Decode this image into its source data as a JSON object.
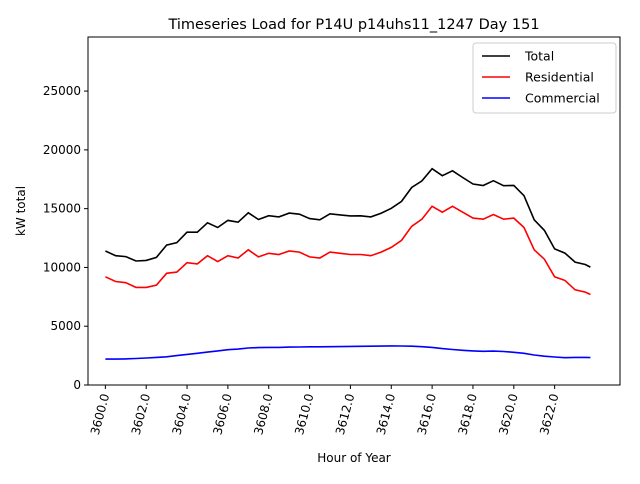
{
  "chart_data": {
    "type": "line",
    "title": "Timeseries Load for P14U p14uhs11_1247  Day 151",
    "xlabel": "Hour of Year",
    "ylabel": "kW total",
    "xlim": [
      3599.15,
      3625.2
    ],
    "ylim": [
      0,
      29600
    ],
    "xticks": [
      3600,
      3602,
      3604,
      3606,
      3608,
      3610,
      3612,
      3614,
      3616,
      3618,
      3620,
      3622
    ],
    "xtick_labels": [
      "3600.0",
      "3602.0",
      "3604.0",
      "3606.0",
      "3608.0",
      "3610.0",
      "3612.0",
      "3614.0",
      "3616.0",
      "3618.0",
      "3620.0",
      "3622.0"
    ],
    "yticks": [
      0,
      5000,
      10000,
      15000,
      20000,
      25000
    ],
    "ytick_labels": [
      "0",
      "5000",
      "10000",
      "15000",
      "20000",
      "25000"
    ],
    "grid": false,
    "legend_placement": "top-right",
    "x": [
      3600,
      3600.5,
      3601,
      3601.5,
      3602,
      3602.5,
      3603,
      3603.5,
      3604,
      3604.5,
      3605,
      3605.5,
      3606,
      3606.5,
      3607,
      3607.5,
      3608,
      3608.5,
      3609,
      3609.5,
      3610,
      3610.5,
      3611,
      3611.5,
      3612,
      3612.5,
      3613,
      3613.5,
      3614,
      3614.5,
      3615,
      3615.5,
      3616,
      3616.5,
      3617,
      3617.5,
      3618,
      3618.5,
      3619,
      3619.5,
      3620,
      3620.5,
      3621,
      3621.5,
      3622,
      3622.5,
      3623,
      3623.5,
      3623.75
    ],
    "series": [
      {
        "name": "Total",
        "color": "#000000",
        "values": [
          11400,
          11000,
          10920,
          10550,
          10600,
          10850,
          11900,
          12100,
          13000,
          13000,
          13800,
          13400,
          14000,
          13850,
          14650,
          14080,
          14400,
          14300,
          14620,
          14530,
          14150,
          14050,
          14560,
          14470,
          14380,
          14390,
          14300,
          14610,
          15030,
          15620,
          16800,
          17360,
          18400,
          17800,
          18220,
          17650,
          17100,
          16970,
          17380,
          16950,
          16980,
          16100,
          14050,
          13150,
          11580,
          11220,
          10450,
          10250,
          10030
        ]
      },
      {
        "name": "Residential",
        "color": "#ff0000",
        "values": [
          9200,
          8800,
          8700,
          8300,
          8300,
          8500,
          9500,
          9600,
          10400,
          10300,
          11000,
          10500,
          11000,
          10800,
          11500,
          10900,
          11200,
          11100,
          11400,
          11300,
          10900,
          10800,
          11300,
          11200,
          11100,
          11100,
          11000,
          11300,
          11700,
          12300,
          13500,
          14100,
          15200,
          14700,
          15200,
          14700,
          14200,
          14100,
          14500,
          14100,
          14200,
          13400,
          11500,
          10700,
          9200,
          8900,
          8100,
          7900,
          7700
        ]
      },
      {
        "name": "Commercial",
        "color": "#0000ff",
        "values": [
          2200,
          2200,
          2220,
          2250,
          2300,
          2350,
          2400,
          2500,
          2600,
          2700,
          2800,
          2900,
          3000,
          3050,
          3150,
          3180,
          3200,
          3200,
          3220,
          3230,
          3250,
          3250,
          3260,
          3270,
          3280,
          3290,
          3300,
          3310,
          3330,
          3320,
          3300,
          3260,
          3200,
          3100,
          3020,
          2950,
          2900,
          2870,
          2880,
          2850,
          2780,
          2700,
          2550,
          2450,
          2380,
          2320,
          2350,
          2350,
          2330
        ]
      }
    ]
  }
}
